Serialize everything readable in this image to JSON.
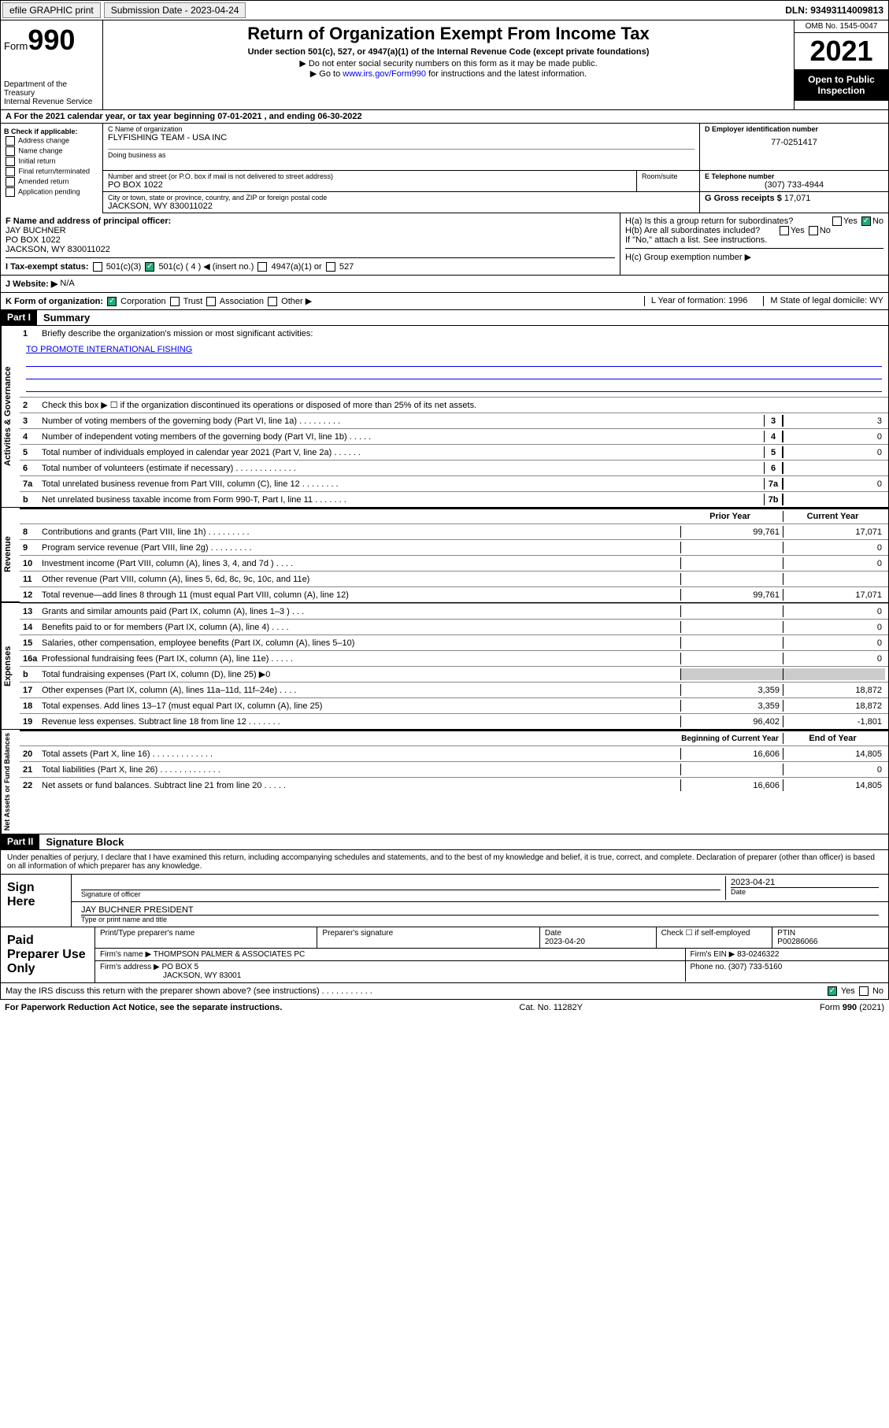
{
  "topbar": {
    "efile": "efile GRAPHIC print",
    "submission_label": "Submission Date - 2023-04-24",
    "dln": "DLN: 93493114009813"
  },
  "header": {
    "form_label": "Form",
    "form_num": "990",
    "dept": "Department of the Treasury",
    "irs": "Internal Revenue Service",
    "title": "Return of Organization Exempt From Income Tax",
    "sub1": "Under section 501(c), 527, or 4947(a)(1) of the Internal Revenue Code (except private foundations)",
    "sub2": "Do not enter social security numbers on this form as it may be made public.",
    "sub3_pre": "Go to ",
    "sub3_link": "www.irs.gov/Form990",
    "sub3_post": " for instructions and the latest information.",
    "omb": "OMB No. 1545-0047",
    "year": "2021",
    "inspect": "Open to Public Inspection"
  },
  "row_a": {
    "text": "A For the 2021 calendar year, or tax year beginning 07-01-2021    , and ending 06-30-2022"
  },
  "col_b": {
    "title": "B Check if applicable:",
    "items": [
      "Address change",
      "Name change",
      "Initial return",
      "Final return/terminated",
      "Amended return",
      "Application pending"
    ]
  },
  "block_c": {
    "name_label": "C Name of organization",
    "name": "FLYFISHING TEAM - USA INC",
    "dba_label": "Doing business as",
    "street_label": "Number and street (or P.O. box if mail is not delivered to street address)",
    "street": "PO BOX 1022",
    "room_label": "Room/suite",
    "city_label": "City or town, state or province, country, and ZIP or foreign postal code",
    "city": "JACKSON, WY  830011022"
  },
  "block_d": {
    "label": "D Employer identification number",
    "value": "77-0251417"
  },
  "block_e": {
    "label": "E Telephone number",
    "value": "(307) 733-4944"
  },
  "block_g": {
    "label": "G Gross receipts $",
    "value": "17,071"
  },
  "block_f": {
    "label": "F  Name and address of principal officer:",
    "name": "JAY BUCHNER",
    "street": "PO BOX 1022",
    "city": "JACKSON, WY  830011022"
  },
  "block_h": {
    "ha": "H(a)  Is this a group return for subordinates?",
    "hb": "H(b)  Are all subordinates included?",
    "attach": "If \"No,\" attach a list. See instructions.",
    "hc": "H(c)  Group exemption number ▶",
    "yes": "Yes",
    "no": "No"
  },
  "row_i": {
    "label": "I    Tax-exempt status:",
    "c3": "501(c)(3)",
    "c": "501(c) ( 4 ) ◀ (insert no.)",
    "a1": "4947(a)(1) or",
    "s527": "527"
  },
  "row_j": {
    "label": "J   Website: ▶",
    "value": "N/A"
  },
  "row_k": {
    "label": "K Form of organization:",
    "corp": "Corporation",
    "trust": "Trust",
    "assoc": "Association",
    "other": "Other ▶",
    "l": "L Year of formation: 1996",
    "m": "M State of legal domicile: WY"
  },
  "part1": {
    "header": "Part I",
    "title": "Summary",
    "vtab1": "Activities & Governance",
    "vtab2": "Revenue",
    "vtab3": "Expenses",
    "vtab4": "Net Assets or Fund Balances",
    "line1": "Briefly describe the organization's mission or most significant activities:",
    "mission": "TO PROMOTE INTERNATIONAL FISHING",
    "line2": "Check this box ▶ ☐  if the organization discontinued its operations or disposed of more than 25% of its net assets.",
    "lines_gov": [
      {
        "n": "3",
        "t": "Number of voting members of the governing body (Part VI, line 1a)   .    .    .    .    .    .    .    .    .",
        "v": "3"
      },
      {
        "n": "4",
        "t": "Number of independent voting members of the governing body (Part VI, line 1b)    .    .    .    .    .",
        "v": "0"
      },
      {
        "n": "5",
        "t": "Total number of individuals employed in calendar year 2021 (Part V, line 2a)   .    .    .    .    .    .",
        "v": "0"
      },
      {
        "n": "6",
        "t": "Total number of volunteers (estimate if necessary)    .    .    .    .    .    .    .    .    .    .    .    .    .",
        "v": ""
      },
      {
        "n": "7a",
        "t": "Total unrelated business revenue from Part VIII, column (C), line 12   .    .    .    .    .    .    .    .",
        "v": "0"
      },
      {
        "n": "b",
        "t": "Net unrelated business taxable income from Form 990-T, Part I, line 11   .    .    .    .    .    .    .",
        "box": "7b",
        "v": ""
      }
    ],
    "col_prior": "Prior Year",
    "col_current": "Current Year",
    "lines_rev": [
      {
        "n": "8",
        "t": "Contributions and grants (Part VIII, line 1h)   .    .    .    .    .    .    .    .    .",
        "p": "99,761",
        "c": "17,071"
      },
      {
        "n": "9",
        "t": "Program service revenue (Part VIII, line 2g)   .    .    .    .    .    .    .    .    .",
        "p": "",
        "c": "0"
      },
      {
        "n": "10",
        "t": "Investment income (Part VIII, column (A), lines 3, 4, and 7d )   .    .    .    .",
        "p": "",
        "c": "0"
      },
      {
        "n": "11",
        "t": "Other revenue (Part VIII, column (A), lines 5, 6d, 8c, 9c, 10c, and 11e)",
        "p": "",
        "c": ""
      },
      {
        "n": "12",
        "t": "Total revenue—add lines 8 through 11 (must equal Part VIII, column (A), line 12)",
        "p": "99,761",
        "c": "17,071"
      }
    ],
    "lines_exp": [
      {
        "n": "13",
        "t": "Grants and similar amounts paid (Part IX, column (A), lines 1–3 )    .    .    .",
        "p": "",
        "c": "0"
      },
      {
        "n": "14",
        "t": "Benefits paid to or for members (Part IX, column (A), line 4)    .    .    .    .",
        "p": "",
        "c": "0"
      },
      {
        "n": "15",
        "t": "Salaries, other compensation, employee benefits (Part IX, column (A), lines 5–10)",
        "p": "",
        "c": "0"
      },
      {
        "n": "16a",
        "t": "Professional fundraising fees (Part IX, column (A), line 11e)   .    .    .    .    .",
        "p": "",
        "c": "0"
      },
      {
        "n": "b",
        "t": "Total fundraising expenses (Part IX, column (D), line 25) ▶0",
        "p": "shaded",
        "c": "shaded"
      },
      {
        "n": "17",
        "t": "Other expenses (Part IX, column (A), lines 11a–11d, 11f–24e)   .    .    .    .",
        "p": "3,359",
        "c": "18,872"
      },
      {
        "n": "18",
        "t": "Total expenses. Add lines 13–17 (must equal Part IX, column (A), line 25)",
        "p": "3,359",
        "c": "18,872"
      },
      {
        "n": "19",
        "t": "Revenue less expenses. Subtract line 18 from line 12   .    .    .    .    .    .    .",
        "p": "96,402",
        "c": "-1,801"
      }
    ],
    "col_begin": "Beginning of Current Year",
    "col_end": "End of Year",
    "lines_net": [
      {
        "n": "20",
        "t": "Total assets (Part X, line 16)    .    .    .    .    .    .    .    .    .    .    .    .    .",
        "p": "16,606",
        "c": "14,805"
      },
      {
        "n": "21",
        "t": "Total liabilities (Part X, line 26)   .    .    .    .    .    .    .    .    .    .    .    .    .",
        "p": "",
        "c": "0"
      },
      {
        "n": "22",
        "t": "Net assets or fund balances. Subtract line 21 from line 20    .    .    .    .    .",
        "p": "16,606",
        "c": "14,805"
      }
    ]
  },
  "part2": {
    "header": "Part II",
    "title": "Signature Block",
    "intro": "Under penalties of perjury, I declare that I have examined this return, including accompanying schedules and statements, and to the best of my knowledge and belief, it is true, correct, and complete. Declaration of preparer (other than officer) is based on all information of which preparer has any knowledge.",
    "sign_here": "Sign Here",
    "sig_officer": "Signature of officer",
    "sig_date": "2023-04-21",
    "date_label": "Date",
    "officer_name": "JAY BUCHNER PRESIDENT",
    "type_name": "Type or print name and title",
    "paid": "Paid Preparer Use Only",
    "prep_name_label": "Print/Type preparer's name",
    "prep_sig_label": "Preparer's signature",
    "prep_date_label": "Date",
    "prep_date": "2023-04-20",
    "check_label": "Check ☐ if self-employed",
    "ptin_label": "PTIN",
    "ptin": "P00286066",
    "firm_name_label": "Firm's name    ▶",
    "firm_name": "THOMPSON PALMER & ASSOCIATES PC",
    "firm_ein_label": "Firm's EIN ▶",
    "firm_ein": "83-0246322",
    "firm_addr_label": "Firm's address ▶",
    "firm_addr1": "PO BOX 5",
    "firm_addr2": "JACKSON, WY  83001",
    "phone_label": "Phone no.",
    "phone": "(307) 733-5160",
    "discuss": "May the IRS discuss this return with the preparer shown above? (see instructions)    .    .    .    .    .    .    .    .    .    .    .",
    "yes": "Yes",
    "no": "No"
  },
  "footer": {
    "left": "For Paperwork Reduction Act Notice, see the separate instructions.",
    "mid": "Cat. No. 11282Y",
    "right": "Form 990 (2021)"
  }
}
